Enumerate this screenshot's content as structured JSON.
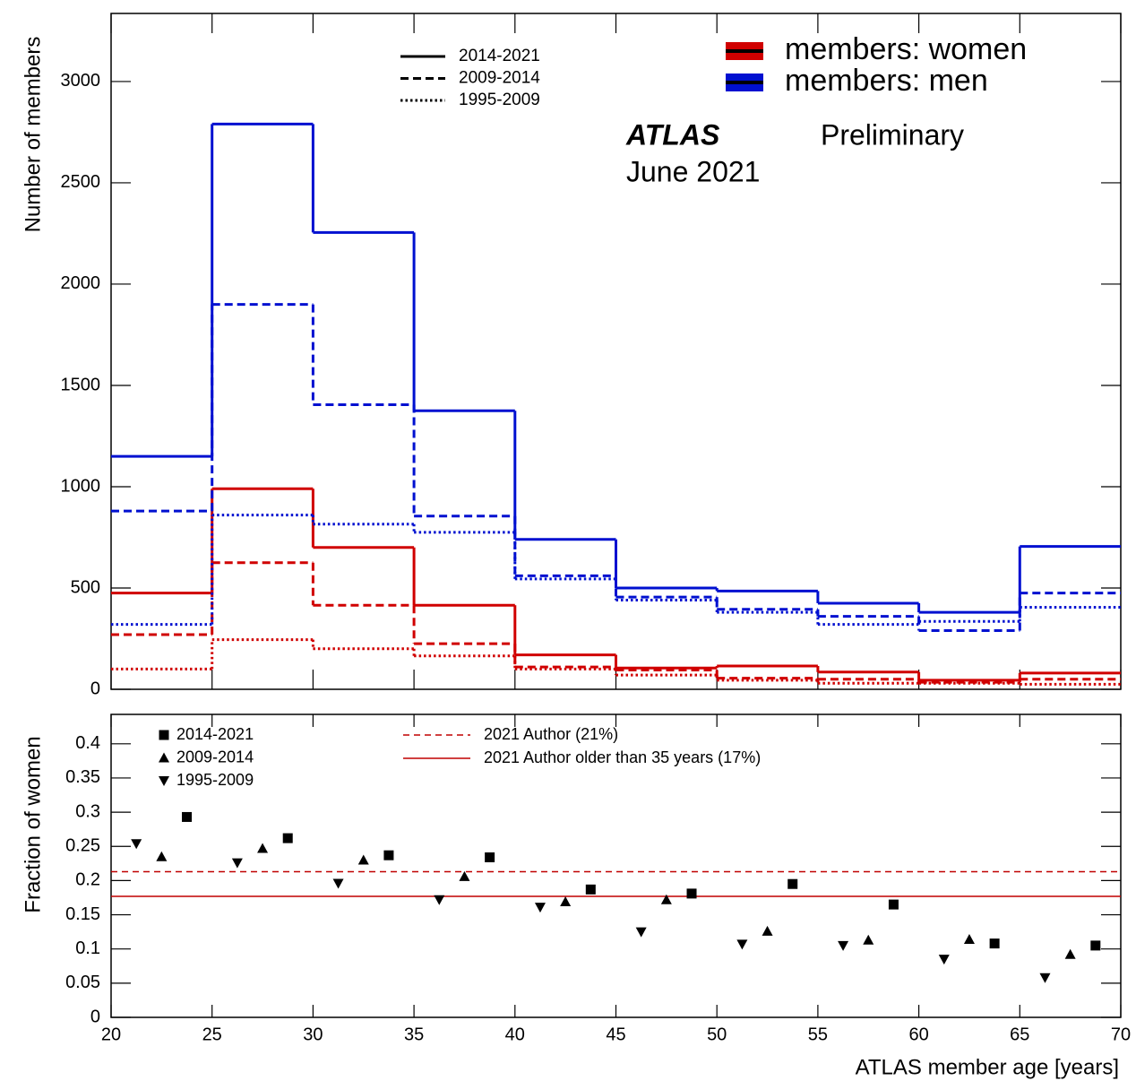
{
  "chart_data": [
    {
      "type": "histogram",
      "ylabel": "Number of members",
      "bins": [
        20,
        25,
        30,
        35,
        40,
        45,
        50,
        55,
        60,
        65,
        70
      ],
      "xlim": [
        20,
        70
      ],
      "ylim": [
        0,
        3336
      ],
      "yticks": [
        0,
        500,
        1000,
        1500,
        2000,
        2500,
        3000
      ],
      "annotations": [
        "ATLAS",
        "Preliminary",
        "June 2021"
      ],
      "line_styles": [
        {
          "name": "2014-2021",
          "dash": "solid"
        },
        {
          "name": "2009-2014",
          "dash": "dashed"
        },
        {
          "name": "1995-2009",
          "dash": "dotted"
        }
      ],
      "series": [
        {
          "name": "members: women",
          "color": "#d00000",
          "values_by_style": [
            [
              475,
              990,
              700,
              415,
              170,
              105,
              115,
              85,
              45,
              80
            ],
            [
              270,
              625,
              415,
              225,
              110,
              95,
              55,
              50,
              35,
              50
            ],
            [
              100,
              245,
              200,
              165,
              100,
              70,
              45,
              30,
              30,
              25
            ]
          ]
        },
        {
          "name": "members: men",
          "color": "#0010d0",
          "values_by_style": [
            [
              1150,
              2790,
              2255,
              1375,
              740,
              500,
              485,
              425,
              380,
              705
            ],
            [
              880,
              1900,
              1405,
              855,
              560,
              455,
              395,
              360,
              290,
              475
            ],
            [
              320,
              860,
              815,
              775,
              545,
              440,
              380,
              320,
              335,
              405
            ]
          ]
        }
      ]
    },
    {
      "type": "scatter",
      "xlabel": "ATLAS member age [years]",
      "ylabel": "Fraction of women",
      "xlim": [
        20,
        70
      ],
      "xticks": [
        20,
        25,
        30,
        35,
        40,
        45,
        50,
        55,
        60,
        65,
        70
      ],
      "ylim": [
        0,
        0.443
      ],
      "yticks": [
        0,
        0.05,
        0.1,
        0.15,
        0.2,
        0.25,
        0.3,
        0.35,
        0.4
      ],
      "series": [
        {
          "name": "2014-2021",
          "marker": "square",
          "x": [
            23.75,
            28.75,
            33.75,
            38.75,
            43.75,
            48.75,
            53.75,
            58.75,
            63.75,
            68.75
          ],
          "values": [
            0.293,
            0.262,
            0.237,
            0.234,
            0.187,
            0.181,
            0.195,
            0.165,
            0.108,
            0.105
          ]
        },
        {
          "name": "2009-2014",
          "marker": "triangle-up",
          "x": [
            22.5,
            27.5,
            32.5,
            37.5,
            42.5,
            47.5,
            52.5,
            57.5,
            62.5,
            67.5
          ],
          "values": [
            0.235,
            0.247,
            0.23,
            0.206,
            0.169,
            0.172,
            0.126,
            0.113,
            0.114,
            0.092
          ]
        },
        {
          "name": "1995-2009",
          "marker": "triangle-down",
          "x": [
            21.25,
            26.25,
            31.25,
            36.25,
            41.25,
            46.25,
            51.25,
            56.25,
            61.25,
            66.25
          ],
          "values": [
            0.254,
            0.226,
            0.196,
            0.172,
            0.161,
            0.125,
            0.107,
            0.105,
            0.085,
            0.058
          ]
        }
      ],
      "reference_lines": [
        {
          "name": "2021 Author (21%)",
          "value": 0.213,
          "dash": "dashed",
          "color": "#c00000"
        },
        {
          "name": "2021 Author older than 35 years (17%)",
          "value": 0.177,
          "dash": "solid",
          "color": "#c00000"
        }
      ]
    }
  ]
}
